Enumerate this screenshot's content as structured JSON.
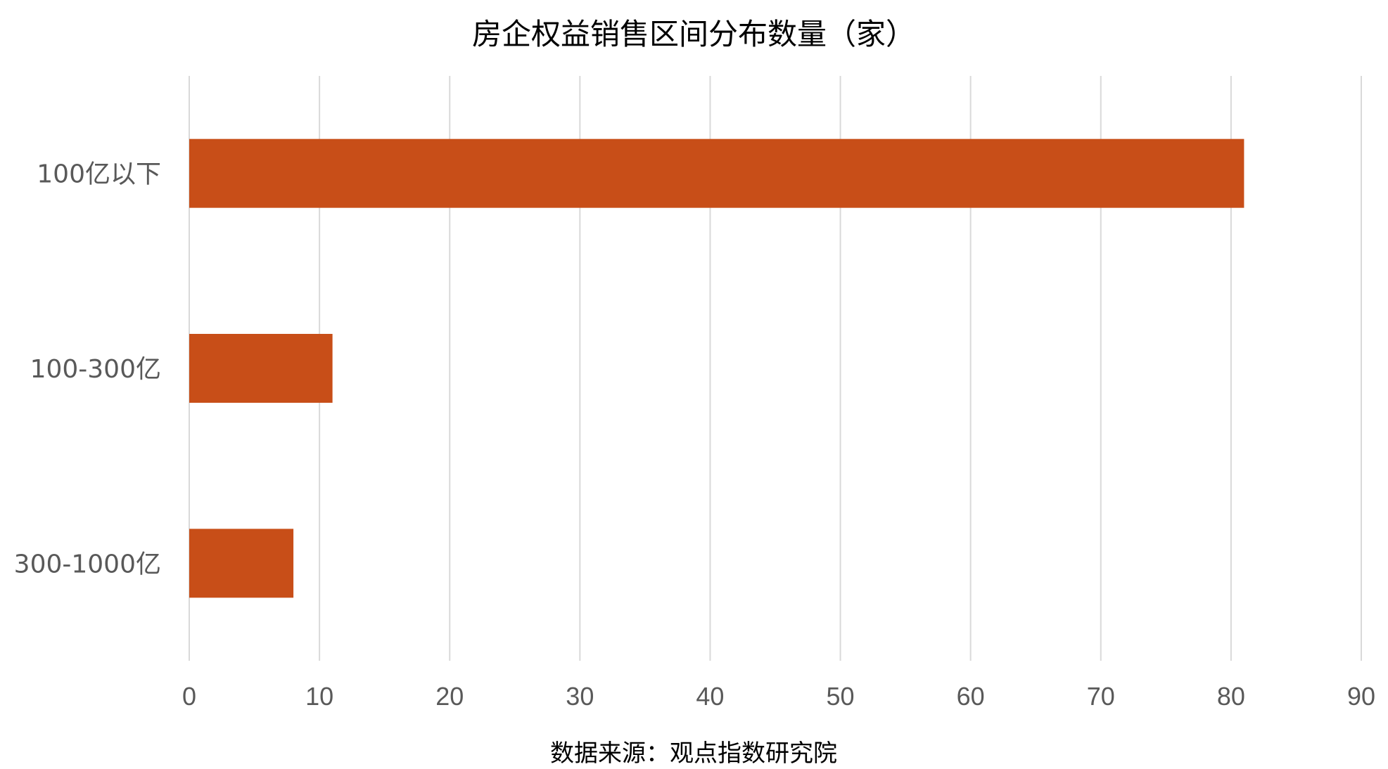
{
  "chart_data": {
    "type": "bar",
    "orientation": "horizontal",
    "title": "房企权益销售区间分布数量（家）",
    "categories": [
      "100亿以下",
      "100-300亿",
      "300-1000亿"
    ],
    "values": [
      81,
      11,
      8
    ],
    "xlim": [
      0,
      90
    ],
    "xticks": [
      "0",
      "10",
      "20",
      "30",
      "40",
      "50",
      "60",
      "70",
      "80",
      "90"
    ],
    "grid": true,
    "legend": "none",
    "bar_color": "#C84E18",
    "source": "数据来源：观点指数研究院"
  }
}
